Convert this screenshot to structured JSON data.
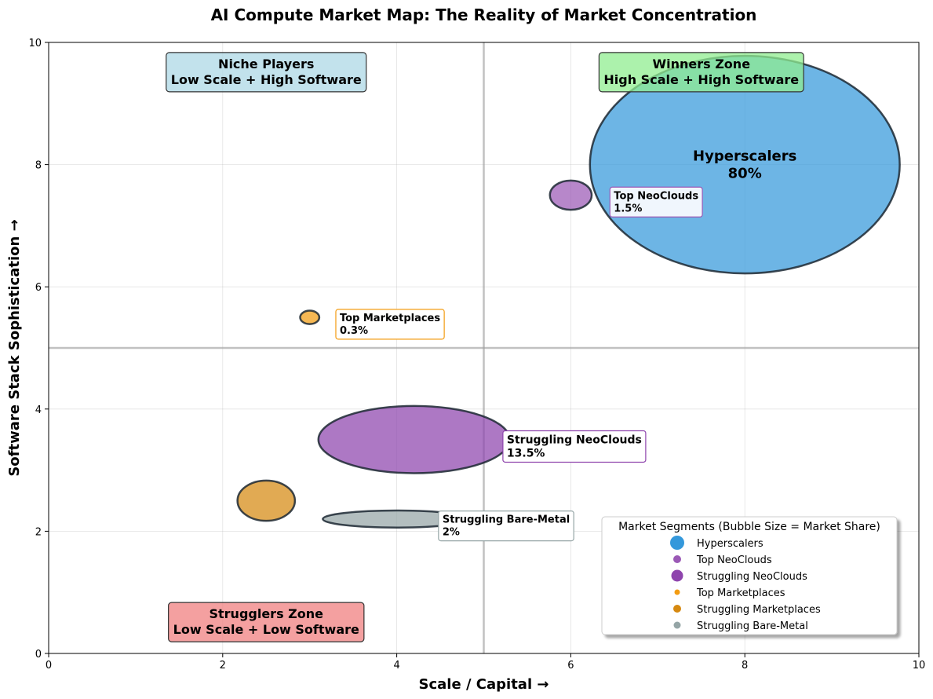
{
  "chart_data": {
    "type": "scatter",
    "title": "AI Compute Market Map: The Reality of Market Concentration",
    "xlabel": "Scale / Capital →",
    "ylabel": "Software Stack Sophistication →",
    "xlim": [
      0,
      10
    ],
    "ylim": [
      0,
      10
    ],
    "xticks": [
      "0",
      "2",
      "4",
      "6",
      "8",
      "10"
    ],
    "yticks": [
      "0",
      "2",
      "4",
      "6",
      "8",
      "10"
    ],
    "grid": true,
    "quadrant_dividers": {
      "x": 5,
      "y": 5
    },
    "legend": {
      "title": "Market Segments (Bubble Size = Market Share)",
      "placement": "lower-right",
      "entries": [
        {
          "name": "Hyperscalers",
          "color": "#3498db"
        },
        {
          "name": "Top NeoClouds",
          "color": "#9b59b6"
        },
        {
          "name": "Struggling NeoClouds",
          "color": "#8e44ad"
        },
        {
          "name": "Top Marketplaces",
          "color": "#f39c12"
        },
        {
          "name": "Struggling Marketplaces",
          "color": "#d68910"
        },
        {
          "name": "Struggling Bare-Metal",
          "color": "#95a5a6"
        }
      ]
    },
    "series": [
      {
        "name": "Hyperscalers",
        "x": 8.0,
        "y": 8.0,
        "rx": 1.78,
        "ry": 1.78,
        "share_label": "80%",
        "color": "#3498db"
      },
      {
        "name": "Top NeoClouds",
        "x": 6.0,
        "y": 7.5,
        "rx": 0.24,
        "ry": 0.24,
        "share_label": "1.5%",
        "color": "#9b59b6"
      },
      {
        "name": "Struggling NeoClouds",
        "x": 4.2,
        "y": 3.5,
        "rx": 1.1,
        "ry": 0.55,
        "share_label": "13.5%",
        "color": "#8e44ad"
      },
      {
        "name": "Top Marketplaces",
        "x": 3.0,
        "y": 5.5,
        "rx": 0.11,
        "ry": 0.11,
        "share_label": "0.3%",
        "color": "#f39c12"
      },
      {
        "name": "Struggling Marketplaces",
        "x": 2.5,
        "y": 2.5,
        "rx": 0.33,
        "ry": 0.33,
        "share_label": "",
        "color": "#d68910"
      },
      {
        "name": "Struggling Bare-Metal",
        "x": 4.0,
        "y": 2.2,
        "rx": 0.85,
        "ry": 0.14,
        "share_label": "2%",
        "color": "#95a5a6"
      }
    ],
    "annotations": [
      {
        "series": "Top NeoClouds",
        "lines": [
          "Top NeoClouds",
          "1.5%"
        ],
        "x": 6.45,
        "y": 7.4,
        "box_fill": "#f0f6fd",
        "box_stroke": "#9b59b6",
        "size": "small"
      },
      {
        "series": "Top Marketplaces",
        "lines": [
          "Top Marketplaces",
          "0.3%"
        ],
        "x": 3.3,
        "y": 5.4,
        "box_fill": "#ffffff",
        "box_stroke": "#f39c12",
        "size": "small"
      },
      {
        "series": "Struggling NeoClouds",
        "lines": [
          "Struggling NeoClouds",
          "13.5%"
        ],
        "x": 5.22,
        "y": 3.4,
        "box_fill": "#ffffff",
        "box_stroke": "#8e44ad",
        "size": "medium"
      },
      {
        "series": "Struggling Bare-Metal",
        "lines": [
          "Struggling Bare-Metal",
          "2%"
        ],
        "x": 4.48,
        "y": 2.1,
        "box_fill": "#ffffff",
        "box_stroke": "#95a5a6",
        "size": "small"
      }
    ],
    "zones": [
      {
        "lines": [
          "Niche Players",
          "Low Scale + High Software"
        ],
        "x": 2.5,
        "y": 9.5,
        "fill": "#add8e6"
      },
      {
        "lines": [
          "Winners Zone",
          "High Scale + High Software"
        ],
        "x": 7.5,
        "y": 9.5,
        "fill": "#90ee90"
      },
      {
        "lines": [
          "Strugglers Zone",
          "Low Scale + Low Software"
        ],
        "x": 2.5,
        "y": 0.5,
        "fill": "#f08080"
      }
    ],
    "center_label": {
      "series": "Hyperscalers",
      "lines": [
        "Hyperscalers",
        "80%"
      ]
    }
  }
}
